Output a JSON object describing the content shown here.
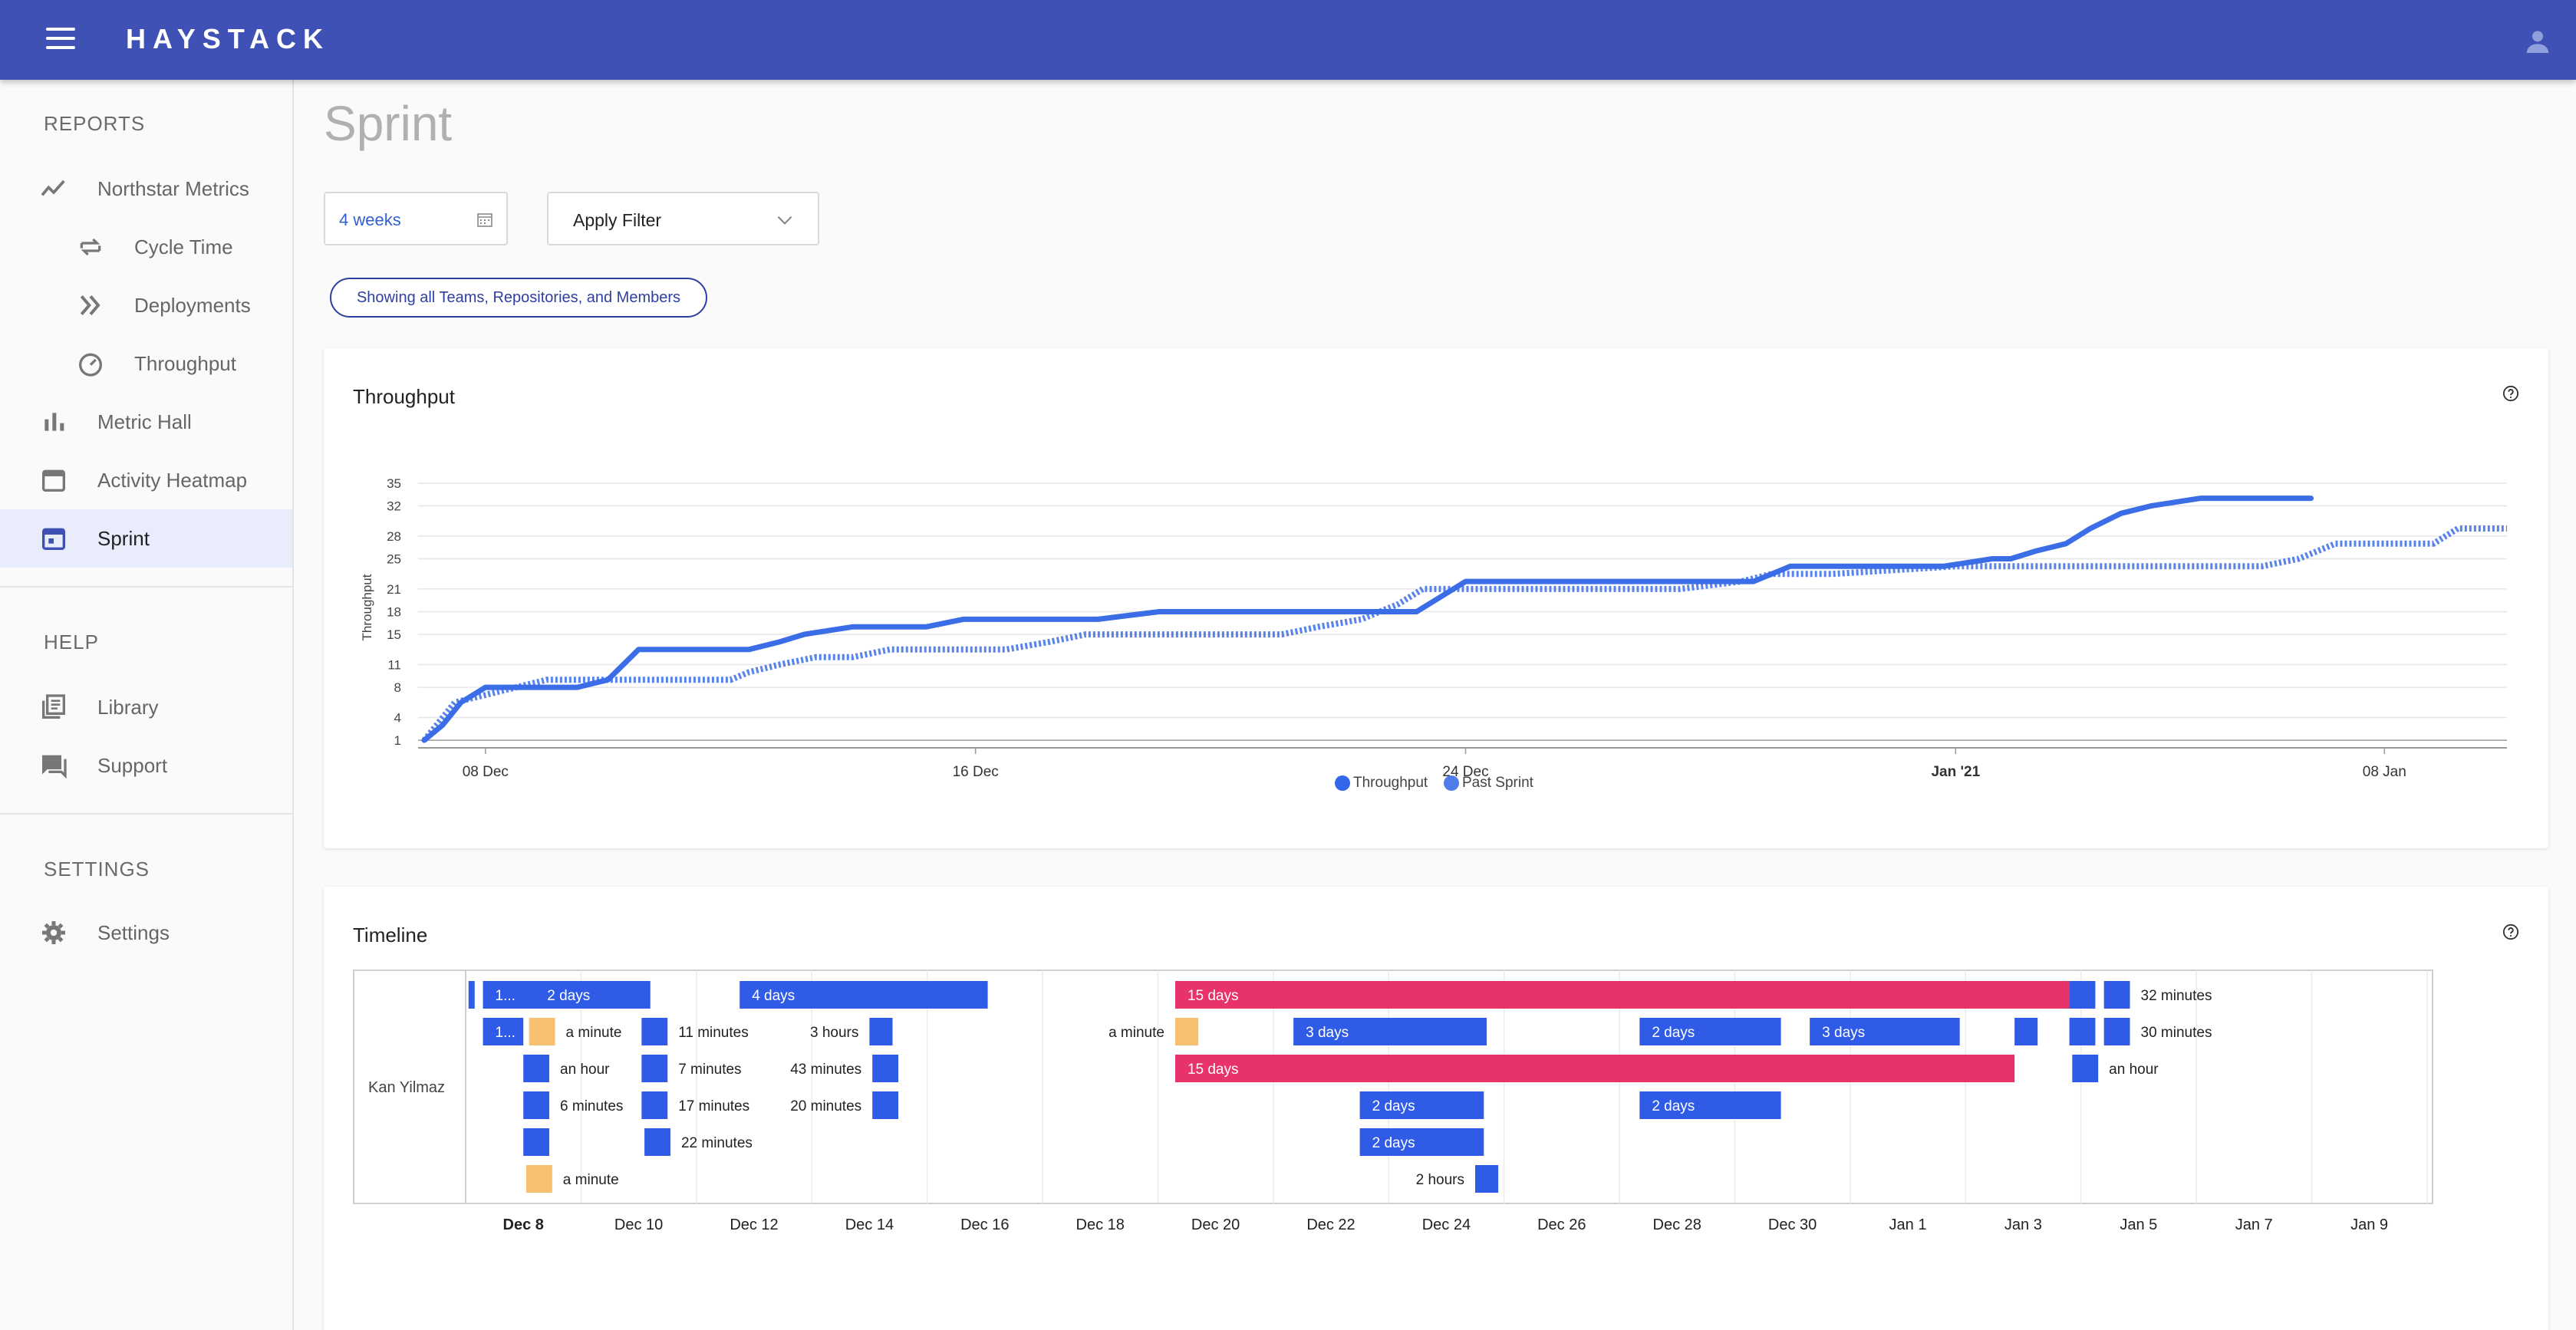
{
  "app": {
    "logo": "HAYSTACK"
  },
  "sidebar": {
    "sections": [
      {
        "title": "REPORTS"
      },
      {
        "title": "HELP"
      },
      {
        "title": "SETTINGS"
      }
    ],
    "items": [
      {
        "label": "Northstar Metrics",
        "icon": "trend-icon"
      },
      {
        "label": "Cycle Time",
        "icon": "repeat-icon"
      },
      {
        "label": "Deployments",
        "icon": "double-chevron-icon"
      },
      {
        "label": "Throughput",
        "icon": "speedometer-icon"
      },
      {
        "label": "Metric Hall",
        "icon": "bar-chart-icon"
      },
      {
        "label": "Activity Heatmap",
        "icon": "calendar-icon"
      },
      {
        "label": "Sprint",
        "icon": "calendar-event-icon"
      },
      {
        "label": "Library",
        "icon": "library-icon"
      },
      {
        "label": "Support",
        "icon": "chat-icon"
      },
      {
        "label": "Settings",
        "icon": "gear-icon"
      }
    ]
  },
  "page": {
    "title": "Sprint",
    "date_range": "4 weeks",
    "filter_label": "Apply Filter",
    "scope_chip": "Showing all Teams, Repositories, and Members"
  },
  "throughput_card": {
    "title": "Throughput",
    "legend": [
      "Throughput",
      "Past Sprint"
    ]
  },
  "timeline_card": {
    "title": "Timeline",
    "member": "Kan Yilmaz",
    "x_ticks": [
      {
        "label": "Dec 8",
        "day": 8,
        "bold": true
      },
      {
        "label": "Dec 10",
        "day": 10
      },
      {
        "label": "Dec 12",
        "day": 12
      },
      {
        "label": "Dec 14",
        "day": 14
      },
      {
        "label": "Dec 16",
        "day": 16
      },
      {
        "label": "Dec 18",
        "day": 18
      },
      {
        "label": "Dec 20",
        "day": 20
      },
      {
        "label": "Dec 22",
        "day": 22
      },
      {
        "label": "Dec 24",
        "day": 24
      },
      {
        "label": "Dec 26",
        "day": 26
      },
      {
        "label": "Dec 28",
        "day": 28
      },
      {
        "label": "Dec 30",
        "day": 30
      },
      {
        "label": "Jan 1",
        "day": 32
      },
      {
        "label": "Jan 3",
        "day": 34
      },
      {
        "label": "Jan 5",
        "day": 36
      },
      {
        "label": "Jan 7",
        "day": 38
      },
      {
        "label": "Jan 9",
        "day": 40
      }
    ],
    "bars": [
      {
        "row": 0,
        "start": 7.05,
        "end": 7.15,
        "color": "blue",
        "label": "",
        "label_pos": "none"
      },
      {
        "row": 0,
        "start": 7.3,
        "end": 10.2,
        "color": "blue",
        "label": "1...",
        "label_pos": "inside"
      },
      {
        "row": 0,
        "start": 8.2,
        "end": 10.2,
        "color": "blue",
        "label": "2 days",
        "label_pos": "inside"
      },
      {
        "row": 0,
        "start": 11.75,
        "end": 16.05,
        "color": "blue",
        "label": "4 days",
        "label_pos": "inside"
      },
      {
        "row": 0,
        "start": 19.3,
        "end": 34.8,
        "color": "red",
        "label": "15 days",
        "label_pos": "inside"
      },
      {
        "row": 0,
        "start": 34.8,
        "end": 35.25,
        "color": "blue",
        "label": "",
        "label_pos": "none"
      },
      {
        "row": 0,
        "start": 35.4,
        "end": 35.85,
        "color": "blue",
        "label": "32 minutes",
        "label_pos": "right"
      },
      {
        "row": 1,
        "start": 7.3,
        "end": 8.0,
        "color": "blue",
        "label": "1...",
        "label_pos": "inside"
      },
      {
        "row": 1,
        "start": 8.1,
        "end": 8.55,
        "color": "orange",
        "label": "a minute",
        "label_pos": "right"
      },
      {
        "row": 1,
        "start": 10.05,
        "end": 10.5,
        "color": "blue",
        "label": "11 minutes",
        "label_pos": "right"
      },
      {
        "row": 1,
        "start": 14.0,
        "end": 14.4,
        "color": "blue",
        "label": "3 hours",
        "label_pos": "left"
      },
      {
        "row": 1,
        "start": 19.3,
        "end": 19.7,
        "color": "orange",
        "label": "a minute",
        "label_pos": "left"
      },
      {
        "row": 1,
        "start": 21.35,
        "end": 24.7,
        "color": "blue",
        "label": "3 days",
        "label_pos": "inside"
      },
      {
        "row": 1,
        "start": 27.35,
        "end": 29.8,
        "color": "blue",
        "label": "2 days",
        "label_pos": "inside"
      },
      {
        "row": 1,
        "start": 30.3,
        "end": 32.9,
        "color": "blue",
        "label": "3 days",
        "label_pos": "inside"
      },
      {
        "row": 1,
        "start": 33.85,
        "end": 34.25,
        "color": "blue",
        "label": "",
        "label_pos": "none"
      },
      {
        "row": 1,
        "start": 34.8,
        "end": 35.25,
        "color": "blue",
        "label": "",
        "label_pos": "none"
      },
      {
        "row": 1,
        "start": 35.4,
        "end": 35.85,
        "color": "blue",
        "label": "30 minutes",
        "label_pos": "right"
      },
      {
        "row": 2,
        "start": 8.0,
        "end": 8.45,
        "color": "blue",
        "label": "an hour",
        "label_pos": "right"
      },
      {
        "row": 2,
        "start": 10.05,
        "end": 10.5,
        "color": "blue",
        "label": "7 minutes",
        "label_pos": "right"
      },
      {
        "row": 2,
        "start": 14.05,
        "end": 14.5,
        "color": "blue",
        "label": "43 minutes",
        "label_pos": "left"
      },
      {
        "row": 2,
        "start": 19.3,
        "end": 33.85,
        "color": "red",
        "label": "15 days",
        "label_pos": "inside"
      },
      {
        "row": 2,
        "start": 34.85,
        "end": 35.3,
        "color": "blue",
        "label": "an hour",
        "label_pos": "right"
      },
      {
        "row": 3,
        "start": 8.0,
        "end": 8.45,
        "color": "blue",
        "label": "6 minutes",
        "label_pos": "right"
      },
      {
        "row": 3,
        "start": 10.05,
        "end": 10.5,
        "color": "blue",
        "label": "17 minutes",
        "label_pos": "right"
      },
      {
        "row": 3,
        "start": 14.05,
        "end": 14.5,
        "color": "blue",
        "label": "20 minutes",
        "label_pos": "left"
      },
      {
        "row": 3,
        "start": 22.5,
        "end": 24.65,
        "color": "blue",
        "label": "2 days",
        "label_pos": "inside"
      },
      {
        "row": 3,
        "start": 27.35,
        "end": 29.8,
        "color": "blue",
        "label": "2 days",
        "label_pos": "inside"
      },
      {
        "row": 4,
        "start": 8.0,
        "end": 8.45,
        "color": "blue",
        "label": "",
        "label_pos": "none"
      },
      {
        "row": 4,
        "start": 10.1,
        "end": 10.55,
        "color": "blue",
        "label": "22 minutes",
        "label_pos": "right"
      },
      {
        "row": 4,
        "start": 22.5,
        "end": 24.65,
        "color": "blue",
        "label": "2 days",
        "label_pos": "inside"
      },
      {
        "row": 5,
        "start": 8.05,
        "end": 8.5,
        "color": "orange",
        "label": "a minute",
        "label_pos": "right"
      },
      {
        "row": 5,
        "start": 24.5,
        "end": 24.9,
        "color": "blue",
        "label": "2 hours",
        "label_pos": "left"
      }
    ]
  },
  "colors": {
    "primary": "#3f51b5",
    "bar_blue": "#2f5be6",
    "bar_red": "#e8326a",
    "bar_orange": "#f5c06f",
    "line_blue": "#3b6de6"
  },
  "chart_data": {
    "type": "line",
    "title": "Throughput",
    "ylabel": "Throughput",
    "xlabel": "",
    "y_ticks": [
      1,
      4,
      8,
      11,
      15,
      18,
      21,
      25,
      28,
      32,
      35
    ],
    "ylim": [
      0,
      36
    ],
    "x_ticks": [
      {
        "label": "08 Dec",
        "day": 8
      },
      {
        "label": "16 Dec",
        "day": 16
      },
      {
        "label": "24 Dec",
        "day": 24
      },
      {
        "label": "Jan '21",
        "day": 32,
        "bold": true
      },
      {
        "label": "08 Jan",
        "day": 39
      }
    ],
    "xlim": [
      6.9,
      41.0
    ],
    "series": [
      {
        "name": "Throughput",
        "style": "solid",
        "x": [
          7.0,
          7.3,
          7.6,
          8.0,
          8.4,
          9.0,
          9.5,
          10.0,
          10.5,
          12.0,
          12.3,
          12.8,
          13.2,
          14.0,
          14.6,
          15.2,
          15.8,
          16.5,
          17.2,
          18.0,
          18.5,
          19.0,
          19.5,
          22.0,
          23.2,
          23.6,
          24.0,
          24.5,
          25.0,
          26.0,
          27.0,
          28.0,
          28.7,
          29.3,
          30.0,
          31.0,
          31.8,
          32.2,
          32.6,
          32.9,
          33.3,
          33.8,
          34.2,
          34.7,
          35.2,
          36.0,
          37.0,
          37.8
        ],
        "y": [
          1,
          3,
          6,
          8,
          8,
          8,
          8,
          9,
          13,
          13,
          13,
          14,
          15,
          16,
          16,
          16,
          17,
          17,
          17,
          17,
          17.5,
          18,
          18,
          18,
          18,
          20,
          22,
          22,
          22,
          22,
          22,
          22,
          22,
          24,
          24,
          24,
          24,
          24.5,
          25,
          25,
          26,
          27,
          29,
          31,
          32,
          33,
          33,
          33
        ]
      },
      {
        "name": "Past Sprint",
        "style": "dotted",
        "x": [
          7.0,
          7.5,
          8.0,
          8.5,
          9.0,
          9.5,
          10.0,
          12.0,
          12.3,
          12.8,
          13.4,
          14.0,
          14.6,
          15.4,
          16.5,
          17.2,
          17.8,
          18.4,
          19.0,
          20.0,
          20.6,
          21.0,
          21.6,
          22.3,
          22.9,
          23.3,
          24.0,
          25.0,
          27.5,
          28.5,
          29.0,
          29.5,
          30.0,
          32.0,
          33.0,
          35.0,
          37.0,
          37.6,
          38.2,
          38.8,
          39.2,
          39.8,
          40.2,
          41.0
        ],
        "y": [
          1,
          6,
          7,
          8,
          9,
          9,
          9,
          9,
          10,
          11,
          12,
          12,
          13,
          13,
          13,
          14,
          15,
          15,
          15,
          15,
          15,
          15,
          16,
          17,
          19,
          21,
          21,
          21,
          21,
          22,
          23,
          23,
          23,
          24,
          24,
          24,
          24,
          25,
          27,
          27,
          27,
          27,
          29,
          29
        ]
      }
    ],
    "grid": true,
    "legend_position": "bottom-center"
  }
}
